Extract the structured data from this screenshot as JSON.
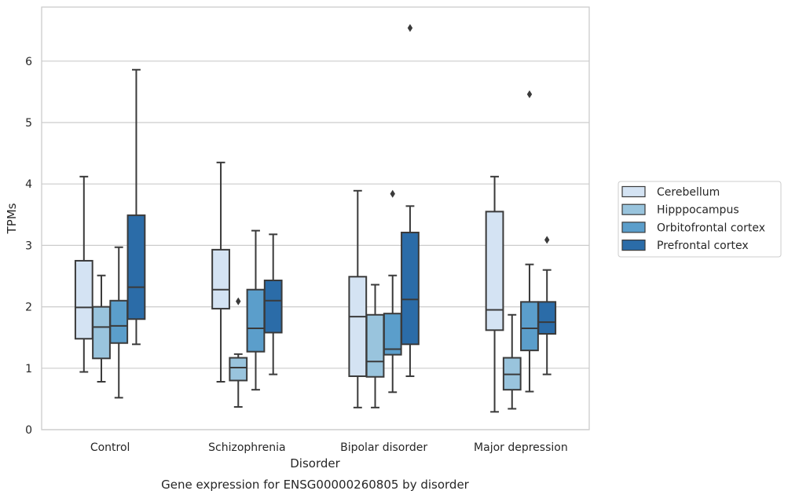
{
  "chart_data": {
    "type": "box",
    "title": "",
    "caption": "Gene expression for ENSG00000260805 by disorder",
    "xlabel": "Disorder",
    "ylabel": "TPMs",
    "ylim": [
      0,
      6.88
    ],
    "yticks": [
      0,
      1,
      2,
      3,
      4,
      5,
      6
    ],
    "grid": true,
    "legend_position": "right",
    "categories": [
      "Control",
      "Schizophrenia",
      "Bipolar disorder",
      "Major depression"
    ],
    "series": [
      {
        "name": "Cerebellum",
        "color": "#d4e3f3",
        "boxes": [
          {
            "whislo": 0.94,
            "q1": 1.48,
            "med": 1.99,
            "q3": 2.75,
            "whishi": 4.12,
            "fliers": []
          },
          {
            "whislo": 0.78,
            "q1": 1.97,
            "med": 2.28,
            "q3": 2.93,
            "whishi": 4.35,
            "fliers": []
          },
          {
            "whislo": 0.36,
            "q1": 0.87,
            "med": 1.84,
            "q3": 2.49,
            "whishi": 3.89,
            "fliers": []
          },
          {
            "whislo": 0.29,
            "q1": 1.62,
            "med": 1.95,
            "q3": 3.55,
            "whishi": 4.12,
            "fliers": []
          }
        ]
      },
      {
        "name": "Hipppocampus",
        "color": "#99c4dd",
        "boxes": [
          {
            "whislo": 0.78,
            "q1": 1.16,
            "med": 1.67,
            "q3": 2.0,
            "whishi": 2.51,
            "fliers": []
          },
          {
            "whislo": 0.37,
            "q1": 0.8,
            "med": 1.01,
            "q3": 1.17,
            "whishi": 1.23,
            "fliers": [
              2.09
            ]
          },
          {
            "whislo": 0.36,
            "q1": 0.86,
            "med": 1.11,
            "q3": 1.87,
            "whishi": 2.36,
            "fliers": []
          },
          {
            "whislo": 0.34,
            "q1": 0.65,
            "med": 0.9,
            "q3": 1.17,
            "whishi": 1.87,
            "fliers": []
          }
        ]
      },
      {
        "name": "Orbitofrontal cortex",
        "color": "#5b9ecb",
        "boxes": [
          {
            "whislo": 0.52,
            "q1": 1.41,
            "med": 1.69,
            "q3": 2.1,
            "whishi": 2.97,
            "fliers": []
          },
          {
            "whislo": 0.65,
            "q1": 1.27,
            "med": 1.65,
            "q3": 2.28,
            "whishi": 3.24,
            "fliers": []
          },
          {
            "whislo": 0.61,
            "q1": 1.22,
            "med": 1.31,
            "q3": 1.89,
            "whishi": 2.51,
            "fliers": [
              3.84
            ]
          },
          {
            "whislo": 0.62,
            "q1": 1.29,
            "med": 1.65,
            "q3": 2.08,
            "whishi": 2.69,
            "fliers": [
              5.46
            ]
          }
        ]
      },
      {
        "name": "Prefrontal cortex",
        "color": "#2b6ca8",
        "boxes": [
          {
            "whislo": 1.39,
            "q1": 1.8,
            "med": 2.32,
            "q3": 3.49,
            "whishi": 5.86,
            "fliers": []
          },
          {
            "whislo": 0.9,
            "q1": 1.58,
            "med": 2.1,
            "q3": 2.43,
            "whishi": 3.18,
            "fliers": []
          },
          {
            "whislo": 0.87,
            "q1": 1.39,
            "med": 2.12,
            "q3": 3.21,
            "whishi": 3.64,
            "fliers": [
              6.54
            ]
          },
          {
            "whislo": 0.9,
            "q1": 1.56,
            "med": 1.75,
            "q3": 2.08,
            "whishi": 2.6,
            "fliers": [
              3.09
            ]
          }
        ]
      }
    ]
  }
}
